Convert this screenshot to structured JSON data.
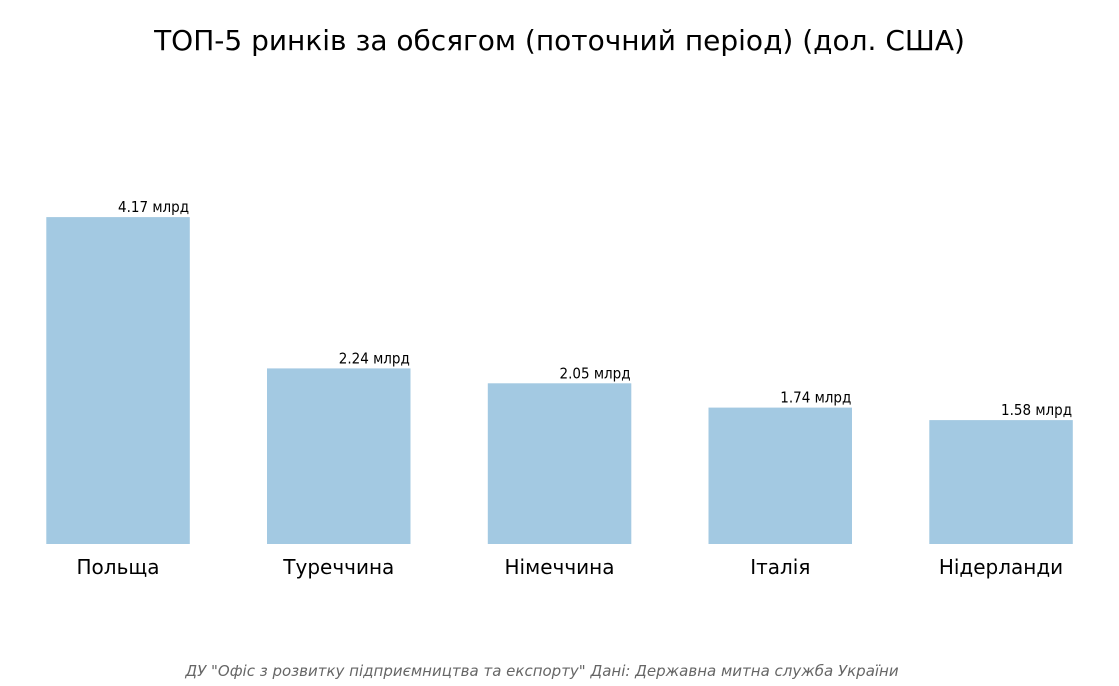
{
  "chart_data": {
    "type": "bar",
    "title": "ТОП-5 ринків за обсягом (поточний період) (дол. США)",
    "categories": [
      "Польща",
      "Туреччина",
      "Німеччина",
      "Італія",
      "Нідерланди"
    ],
    "values": [
      4.17,
      2.24,
      2.05,
      1.74,
      1.58
    ],
    "value_labels": [
      "4.17 млрд",
      "2.24 млрд",
      "2.05 млрд",
      "1.74 млрд",
      "1.58 млрд"
    ],
    "xlabel": "",
    "ylabel": "",
    "ylim": [
      0,
      6.0
    ],
    "grid": false,
    "legend": "none",
    "bar_color": "#a3c9e2"
  },
  "footer": {
    "source": "ДУ \"Офіс з розвитку підприємництва та експорту\" Дані: Державна митна служба України"
  }
}
